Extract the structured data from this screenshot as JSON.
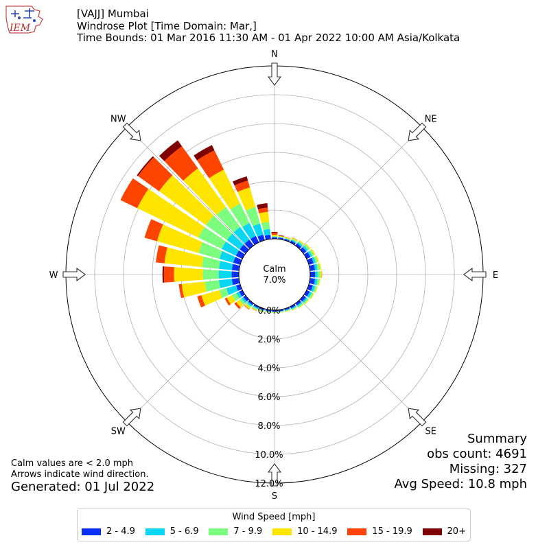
{
  "logo": {
    "text": "IEM"
  },
  "header": {
    "line1": "[VAJJ] Mumbai",
    "line2": "Windrose Plot [Time Domain: Mar,]",
    "line3": "Time Bounds: 01 Mar 2016 11:30 AM - 01 Apr 2022 10:00 AM Asia/Kolkata"
  },
  "notes": {
    "calm_note": "Calm values are < 2.0 mph",
    "arrow_note": "Arrows indicate wind direction.",
    "generated": "Generated: 01 Jul 2022"
  },
  "summary": {
    "title": "Summary",
    "obs_count": "obs count: 4691",
    "missing": "Missing: 327",
    "avg_speed": "Avg Speed: 10.8 mph"
  },
  "chart_data": {
    "type": "windrose",
    "calm_label": "Calm",
    "calm_value": "7.0%",
    "calm_percent": 7.0,
    "compass_labels": [
      "N",
      "NE",
      "E",
      "SE",
      "S",
      "SW",
      "W",
      "NW"
    ],
    "radial_ticks": [
      "0.0%",
      "2.0%",
      "4.0%",
      "6.0%",
      "8.0%",
      "10.0%",
      "12.0%"
    ],
    "radial_max": 12.0,
    "legend_title": "Wind Speed [mph]",
    "bins": [
      {
        "label": "2 - 4.9",
        "color": "#0b2ef4"
      },
      {
        "label": "5 - 6.9",
        "color": "#08d6f2"
      },
      {
        "label": "7 - 9.9",
        "color": "#7cfd7f"
      },
      {
        "label": "10 - 14.9",
        "color": "#fde500"
      },
      {
        "label": "15 - 19.9",
        "color": "#fe4401"
      },
      {
        "label": "20+",
        "color": "#7f0000"
      }
    ],
    "directions": [
      0,
      10,
      20,
      30,
      40,
      50,
      60,
      70,
      80,
      90,
      100,
      110,
      120,
      130,
      140,
      150,
      160,
      170,
      180,
      190,
      200,
      210,
      220,
      230,
      240,
      250,
      260,
      270,
      280,
      290,
      300,
      310,
      320,
      330,
      340,
      350
    ],
    "cumulative_percent": [
      [
        0.1,
        0.14,
        0.18,
        0.28,
        0.42,
        0.48
      ],
      [
        0.1,
        0.14,
        0.18,
        0.22,
        0.26,
        0.28
      ],
      [
        0.1,
        0.14,
        0.18,
        0.24,
        0.26,
        0.26
      ],
      [
        0.15,
        0.22,
        0.3,
        0.38,
        0.4,
        0.4
      ],
      [
        0.2,
        0.32,
        0.4,
        0.48,
        0.48,
        0.48
      ],
      [
        0.25,
        0.38,
        0.52,
        0.6,
        0.6,
        0.6
      ],
      [
        0.3,
        0.44,
        0.58,
        0.68,
        0.68,
        0.68
      ],
      [
        0.35,
        0.5,
        0.64,
        0.74,
        0.74,
        0.74
      ],
      [
        0.35,
        0.52,
        0.68,
        0.78,
        0.78,
        0.78
      ],
      [
        0.35,
        0.52,
        0.7,
        0.8,
        0.82,
        0.82
      ],
      [
        0.35,
        0.52,
        0.66,
        0.72,
        0.72,
        0.72
      ],
      [
        0.3,
        0.46,
        0.58,
        0.64,
        0.64,
        0.64
      ],
      [
        0.25,
        0.4,
        0.52,
        0.58,
        0.58,
        0.58
      ],
      [
        0.22,
        0.34,
        0.44,
        0.5,
        0.5,
        0.5
      ],
      [
        0.18,
        0.28,
        0.36,
        0.42,
        0.42,
        0.42
      ],
      [
        0.14,
        0.22,
        0.28,
        0.32,
        0.32,
        0.32
      ],
      [
        0.1,
        0.16,
        0.2,
        0.24,
        0.24,
        0.24
      ],
      [
        0.1,
        0.14,
        0.18,
        0.2,
        0.2,
        0.2
      ],
      [
        0.1,
        0.12,
        0.16,
        0.18,
        0.18,
        0.18
      ],
      [
        0.1,
        0.14,
        0.18,
        0.2,
        0.2,
        0.2
      ],
      [
        0.1,
        0.16,
        0.22,
        0.26,
        0.26,
        0.26
      ],
      [
        0.12,
        0.2,
        0.28,
        0.34,
        0.36,
        0.36
      ],
      [
        0.15,
        0.26,
        0.38,
        0.5,
        0.54,
        0.54
      ],
      [
        0.2,
        0.36,
        0.54,
        0.8,
        0.96,
        0.96
      ],
      [
        0.25,
        0.46,
        0.8,
        1.2,
        1.36,
        1.36
      ],
      [
        0.3,
        1.0,
        1.5,
        2.8,
        3.1,
        3.1
      ],
      [
        0.5,
        1.4,
        2.4,
        4.0,
        4.2,
        4.2
      ],
      [
        0.5,
        1.4,
        2.5,
        4.5,
        5.2,
        5.3
      ],
      [
        0.5,
        1.4,
        2.6,
        5.2,
        5.8,
        5.8
      ],
      [
        0.5,
        1.5,
        3.0,
        6.0,
        6.9,
        6.9
      ],
      [
        0.5,
        1.6,
        3.4,
        8.1,
        9.4,
        9.4
      ],
      [
        0.5,
        1.6,
        3.4,
        7.4,
        9.2,
        9.3
      ],
      [
        0.5,
        1.6,
        3.3,
        6.6,
        8.5,
        9.0
      ],
      [
        0.5,
        1.5,
        3.0,
        5.6,
        7.1,
        7.5
      ],
      [
        0.4,
        1.2,
        2.4,
        3.8,
        4.3,
        4.6
      ],
      [
        0.3,
        0.7,
        1.2,
        1.9,
        2.2,
        2.5
      ]
    ]
  }
}
